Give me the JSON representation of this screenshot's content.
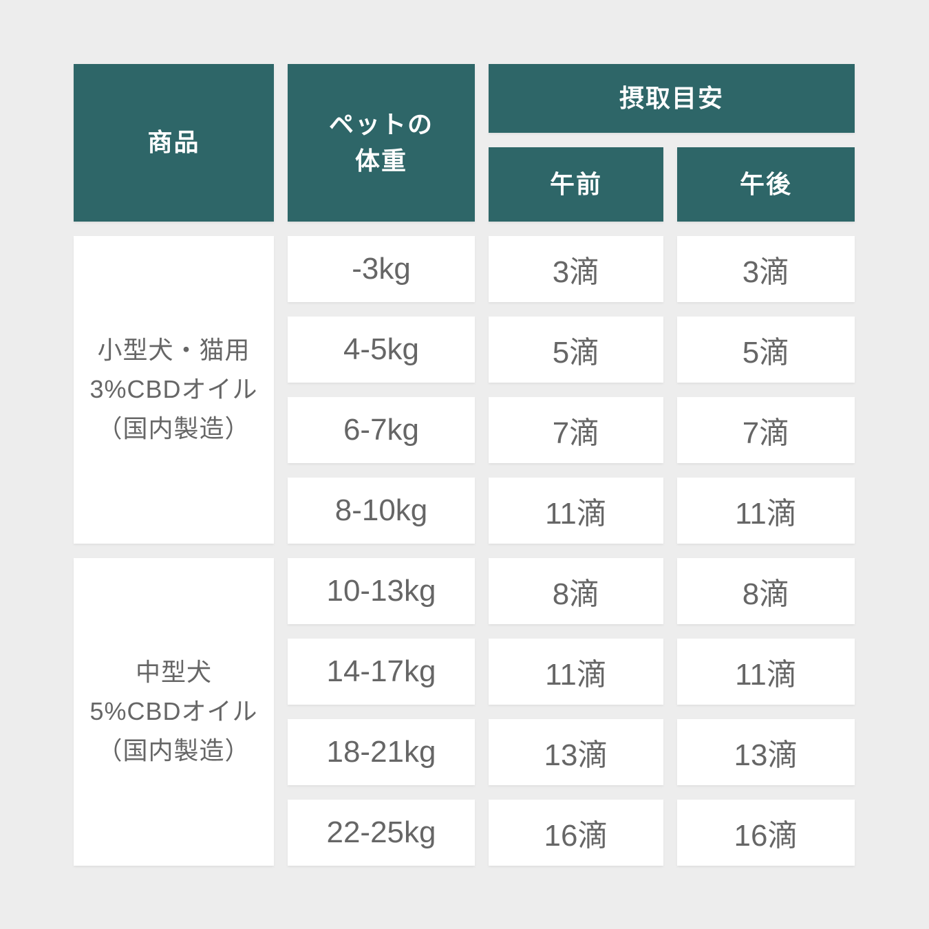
{
  "colors": {
    "background": "#ededed",
    "header_bg": "#2e6668",
    "header_text": "#ffffff",
    "cell_bg": "#ffffff",
    "cell_text": "#666666"
  },
  "table": {
    "headers": {
      "product": "商品",
      "weight": "ペットの\n体重",
      "intake": "摂取目安",
      "am": "午前",
      "pm": "午後"
    },
    "groups": [
      {
        "product_lines": [
          "小型犬・猫用",
          "3%CBDオイル",
          "（国内製造）"
        ],
        "rows": [
          {
            "weight": "-3kg",
            "am": "3滴",
            "pm": "3滴"
          },
          {
            "weight": "4-5kg",
            "am": "5滴",
            "pm": "5滴"
          },
          {
            "weight": "6-7kg",
            "am": "7滴",
            "pm": "7滴"
          },
          {
            "weight": "8-10kg",
            "am": "11滴",
            "pm": "11滴"
          }
        ]
      },
      {
        "product_lines": [
          "中型犬",
          "5%CBDオイル",
          "（国内製造）"
        ],
        "rows": [
          {
            "weight": "10-13kg",
            "am": "8滴",
            "pm": "8滴"
          },
          {
            "weight": "14-17kg",
            "am": "11滴",
            "pm": "11滴"
          },
          {
            "weight": "18-21kg",
            "am": "13滴",
            "pm": "13滴"
          },
          {
            "weight": "22-25kg",
            "am": "16滴",
            "pm": "16滴"
          }
        ]
      }
    ]
  },
  "chart_data": {
    "type": "table",
    "columns": [
      "商品",
      "ペットの体重",
      "摂取目安 午前",
      "摂取目安 午後"
    ],
    "rows": [
      [
        "小型犬・猫用 3%CBDオイル（国内製造）",
        "-3kg",
        "3滴",
        "3滴"
      ],
      [
        "小型犬・猫用 3%CBDオイル（国内製造）",
        "4-5kg",
        "5滴",
        "5滴"
      ],
      [
        "小型犬・猫用 3%CBDオイル（国内製造）",
        "6-7kg",
        "7滴",
        "7滴"
      ],
      [
        "小型犬・猫用 3%CBDオイル（国内製造）",
        "8-10kg",
        "11滴",
        "11滴"
      ],
      [
        "中型犬 5%CBDオイル（国内製造）",
        "10-13kg",
        "8滴",
        "8滴"
      ],
      [
        "中型犬 5%CBDオイル（国内製造）",
        "14-17kg",
        "11滴",
        "11滴"
      ],
      [
        "中型犬 5%CBDオイル（国内製造）",
        "18-21kg",
        "13滴",
        "13滴"
      ],
      [
        "中型犬 5%CBDオイル（国内製造）",
        "22-25kg",
        "16滴",
        "16滴"
      ]
    ]
  }
}
